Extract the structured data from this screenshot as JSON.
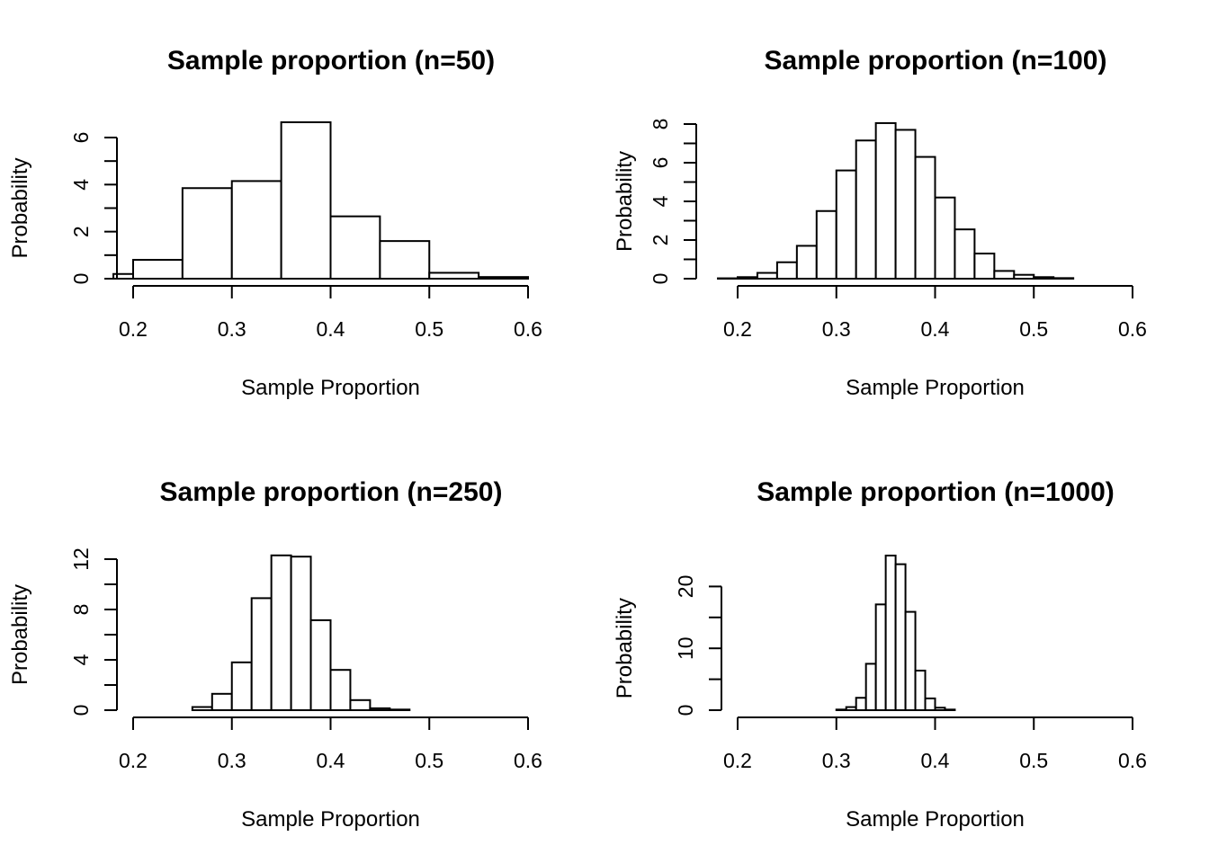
{
  "chart_data": [
    {
      "type": "bar",
      "title": "Sample proportion (n=50)",
      "xlabel": "Sample Proportion",
      "ylabel": "Probability",
      "xlim": [
        0.2,
        0.6
      ],
      "ylim": [
        0,
        6
      ],
      "x_ticks": [
        "0.2",
        "0.3",
        "0.4",
        "0.5",
        "0.6"
      ],
      "y_ticks": [
        "0",
        "2",
        "4",
        "6"
      ],
      "bin_edges": [
        0.18,
        0.2,
        0.25,
        0.3,
        0.35,
        0.4,
        0.45,
        0.5,
        0.55,
        0.6
      ],
      "values": [
        0.2,
        0.8,
        3.85,
        4.15,
        6.65,
        2.65,
        1.6,
        0.25,
        0.07
      ]
    },
    {
      "type": "bar",
      "title": "Sample proportion (n=100)",
      "xlabel": "Sample Proportion",
      "ylabel": "Probability",
      "xlim": [
        0.2,
        0.6
      ],
      "ylim": [
        0,
        8
      ],
      "x_ticks": [
        "0.2",
        "0.3",
        "0.4",
        "0.5",
        "0.6"
      ],
      "y_ticks": [
        "0",
        "2",
        "4",
        "6",
        "8"
      ],
      "bin_edges": [
        0.18,
        0.2,
        0.22,
        0.24,
        0.26,
        0.28,
        0.3,
        0.32,
        0.34,
        0.36,
        0.38,
        0.4,
        0.42,
        0.44,
        0.46,
        0.48,
        0.5,
        0.52,
        0.54
      ],
      "values": [
        0.02,
        0.08,
        0.3,
        0.85,
        1.7,
        3.5,
        5.6,
        7.15,
        8.05,
        7.7,
        6.3,
        4.2,
        2.55,
        1.3,
        0.4,
        0.2,
        0.08,
        0.03
      ]
    },
    {
      "type": "bar",
      "title": "Sample proportion (n=250)",
      "xlabel": "Sample Proportion",
      "ylabel": "Probability",
      "xlim": [
        0.2,
        0.6
      ],
      "ylim": [
        0,
        12
      ],
      "x_ticks": [
        "0.2",
        "0.3",
        "0.4",
        "0.5",
        "0.6"
      ],
      "y_ticks": [
        "0",
        "4",
        "8",
        "12"
      ],
      "bin_edges": [
        0.26,
        0.28,
        0.3,
        0.32,
        0.34,
        0.36,
        0.38,
        0.4,
        0.42,
        0.44,
        0.46,
        0.48
      ],
      "values": [
        0.25,
        1.3,
        3.8,
        8.9,
        12.3,
        12.2,
        7.15,
        3.2,
        0.8,
        0.15,
        0.05
      ]
    },
    {
      "type": "bar",
      "title": "Sample proportion (n=1000)",
      "xlabel": "Sample Proportion",
      "ylabel": "Probability",
      "xlim": [
        0.2,
        0.6
      ],
      "ylim": [
        0,
        25
      ],
      "x_ticks": [
        "0.2",
        "0.3",
        "0.4",
        "0.5",
        "0.6"
      ],
      "y_ticks": [
        "0",
        "10",
        "20"
      ],
      "bin_edges": [
        0.3,
        0.31,
        0.32,
        0.33,
        0.34,
        0.35,
        0.36,
        0.37,
        0.38,
        0.39,
        0.4,
        0.41,
        0.42
      ],
      "values": [
        0.1,
        0.5,
        2.0,
        7.5,
        17.1,
        25.0,
        23.6,
        15.9,
        6.4,
        1.9,
        0.4,
        0.1
      ]
    }
  ]
}
